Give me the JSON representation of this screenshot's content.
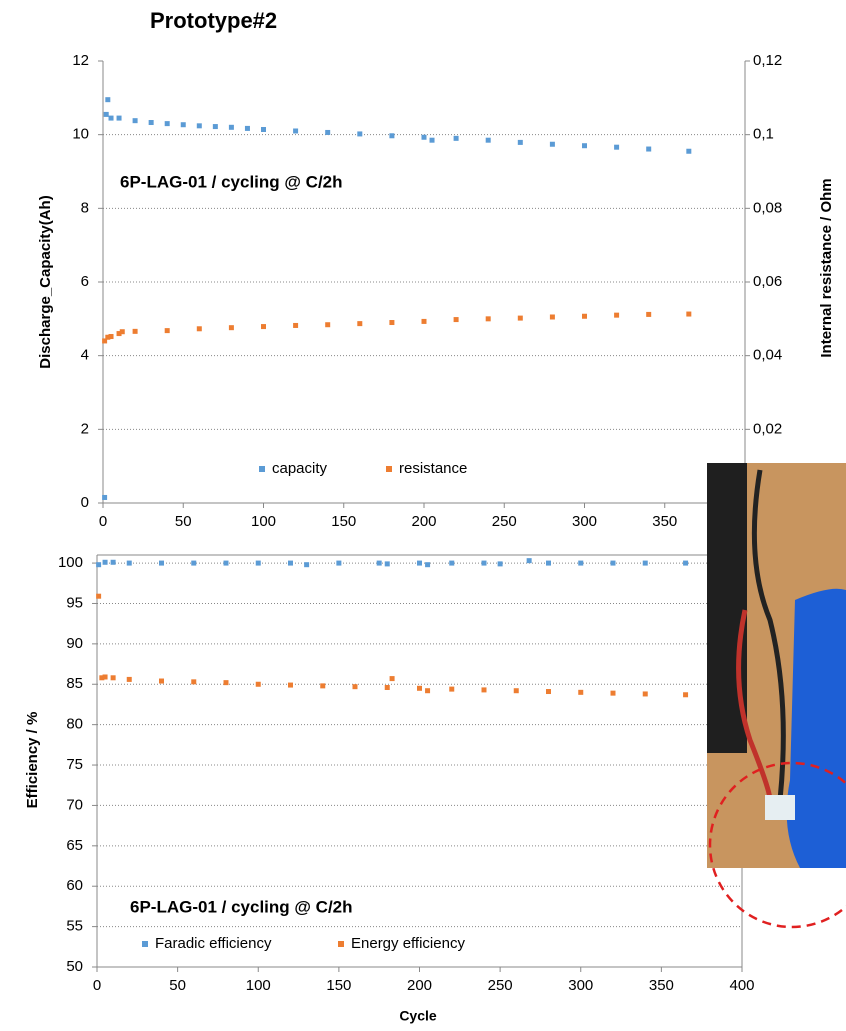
{
  "title": "Prototype#2",
  "chart_data": [
    {
      "type": "scatter",
      "annotation": "6P-LAG-01 / cycling @ C/2h",
      "ylabel": "Discharge_Capacity(Ah)",
      "y2label": "Internal resistance / Ohm",
      "xlim": [
        0,
        400
      ],
      "xticks": [
        0,
        50,
        100,
        150,
        200,
        250,
        300,
        350
      ],
      "ylim": [
        0,
        12
      ],
      "yticks": [
        0,
        2,
        4,
        6,
        8,
        10,
        12
      ],
      "y2lim": [
        0,
        0.12
      ],
      "y2ticks": [
        {
          "value": 0.02,
          "label": "0,02"
        },
        {
          "value": 0.04,
          "label": "0,04"
        },
        {
          "value": 0.06,
          "label": "0,06"
        },
        {
          "value": 0.08,
          "label": "0,08"
        },
        {
          "value": 0.1,
          "label": "0,1"
        },
        {
          "value": 0.12,
          "label": "0,12"
        }
      ],
      "grid": true,
      "legend": "bottom",
      "series": [
        {
          "name": "capacity",
          "color": "#5b9bd5",
          "x": [
            1,
            2,
            3,
            5,
            10,
            20,
            30,
            40,
            50,
            60,
            70,
            80,
            90,
            100,
            120,
            140,
            160,
            180,
            200,
            205,
            220,
            240,
            260,
            280,
            300,
            320,
            340,
            365
          ],
          "values": [
            0.15,
            10.55,
            10.95,
            10.45,
            10.45,
            10.38,
            10.33,
            10.3,
            10.27,
            10.24,
            10.22,
            10.2,
            10.17,
            10.14,
            10.1,
            10.06,
            10.02,
            9.97,
            9.93,
            9.85,
            9.9,
            9.85,
            9.79,
            9.74,
            9.7,
            9.66,
            9.61,
            9.55
          ]
        },
        {
          "name": "resistance",
          "color": "#ed7d31",
          "axis": "y2",
          "x": [
            1,
            3,
            5,
            10,
            12,
            20,
            40,
            60,
            80,
            100,
            120,
            140,
            160,
            180,
            200,
            220,
            240,
            260,
            280,
            300,
            320,
            340,
            365
          ],
          "values": [
            0.044,
            0.045,
            0.0452,
            0.046,
            0.0465,
            0.0466,
            0.0468,
            0.0473,
            0.0476,
            0.0479,
            0.0482,
            0.0484,
            0.0487,
            0.049,
            0.0493,
            0.0498,
            0.05,
            0.0502,
            0.0505,
            0.0507,
            0.051,
            0.0512,
            0.0513
          ]
        }
      ]
    },
    {
      "type": "scatter",
      "annotation": "6P-LAG-01 / cycling @ C/2h",
      "xlabel": "Cycle",
      "ylabel": "Efficiency / %",
      "xlim": [
        0,
        400
      ],
      "xticks": [
        0,
        50,
        100,
        150,
        200,
        250,
        300,
        350,
        400
      ],
      "ylim": [
        50,
        101
      ],
      "yticks": [
        50,
        55,
        60,
        65,
        70,
        75,
        80,
        85,
        90,
        95,
        100
      ],
      "grid": true,
      "legend": "bottom",
      "series": [
        {
          "name": "Faradic efficiency",
          "color": "#5b9bd5",
          "x": [
            1,
            5,
            10,
            20,
            40,
            60,
            80,
            100,
            120,
            130,
            150,
            175,
            180,
            200,
            205,
            220,
            240,
            250,
            268,
            280,
            300,
            320,
            340,
            365
          ],
          "values": [
            99.8,
            100.1,
            100.1,
            100,
            100,
            100,
            100,
            100,
            100,
            99.8,
            100,
            100,
            99.9,
            100,
            99.8,
            100,
            100,
            99.9,
            100.3,
            100,
            100,
            100,
            100,
            100
          ]
        },
        {
          "name": "Energy efficiency",
          "color": "#ed7d31",
          "x": [
            1,
            3,
            5,
            10,
            20,
            40,
            60,
            80,
            100,
            120,
            140,
            160,
            180,
            183,
            200,
            205,
            220,
            240,
            260,
            280,
            300,
            320,
            340,
            365
          ],
          "values": [
            95.9,
            85.8,
            85.9,
            85.8,
            85.6,
            85.4,
            85.3,
            85.2,
            85,
            84.9,
            84.8,
            84.7,
            84.6,
            85.7,
            84.5,
            84.2,
            84.4,
            84.3,
            84.2,
            84.1,
            84,
            83.9,
            83.8,
            83.7
          ]
        }
      ]
    }
  ]
}
